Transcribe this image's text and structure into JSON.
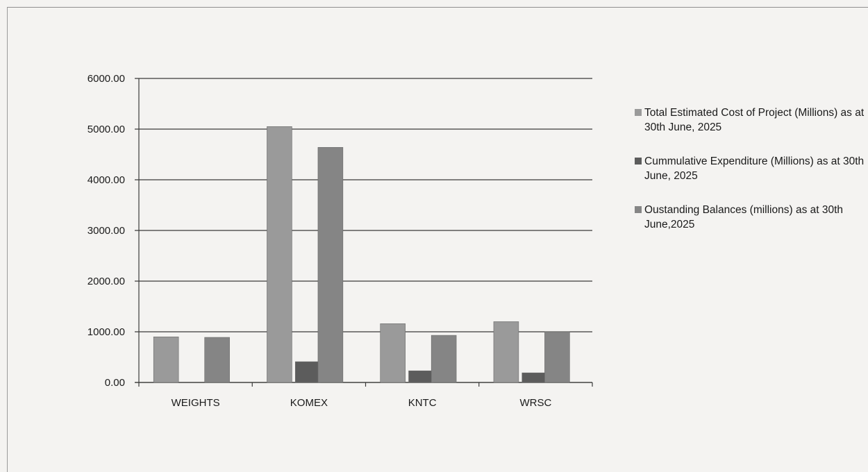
{
  "chart_data": {
    "type": "bar",
    "categories": [
      "WEIGHTS",
      "KOMEX",
      "KNTC",
      "WRSC"
    ],
    "series": [
      {
        "name": "Total Estimated Cost of Project (Millions) as at 30th June, 2025",
        "values": [
          900,
          5050,
          1160,
          1200
        ],
        "color": "#9a9a9a"
      },
      {
        "name": "Cummulative Expenditure (Millions) as at 30th June, 2025",
        "values": [
          0,
          410,
          230,
          190
        ],
        "color": "#5c5c5c"
      },
      {
        "name": "Oustanding Balances (millions) as at 30th June,2025",
        "values": [
          890,
          4640,
          930,
          1000
        ],
        "color": "#858585"
      }
    ],
    "yticks": [
      "0.00",
      "1000.00",
      "2000.00",
      "3000.00",
      "4000.00",
      "5000.00",
      "6000.00"
    ],
    "ylim": [
      0,
      6000
    ],
    "grid": true,
    "legend_position": "right",
    "title": "",
    "xlabel": "",
    "ylabel": ""
  }
}
